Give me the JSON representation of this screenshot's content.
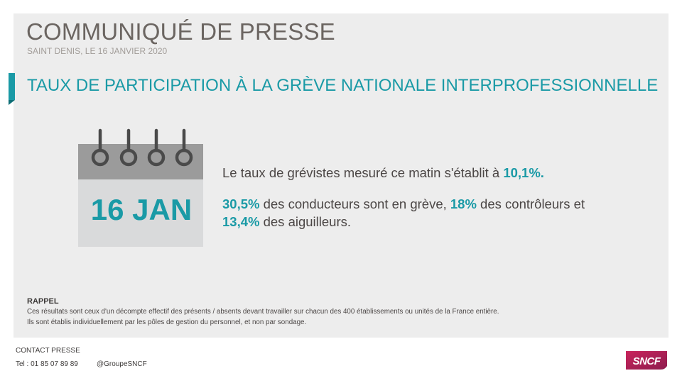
{
  "header": {
    "title": "COMMUNIQUÉ DE PRESSE",
    "dateline": "SAINT DENIS, LE 16 JANVIER 2020",
    "headline": "TAUX DE PARTICIPATION À LA GRÈVE NATIONALE INTERPROFESSIONNELLE"
  },
  "calendar": {
    "date": "16 JAN",
    "icon": "calendar-icon"
  },
  "stats": {
    "line1_prefix": "Le taux de grévistes mesuré ce matin s'établit à ",
    "rate_total": "10,1%.",
    "rate_drivers": "30,5%",
    "line2_mid1": " des conducteurs sont en grève, ",
    "rate_controllers": "18%",
    "line2_mid2": " des contrôleurs et",
    "rate_switchmen": "13,4%",
    "line3_suffix": " des aiguilleurs."
  },
  "rappel": {
    "title": "RAPPEL",
    "line1": "Ces résultats sont ceux d'un décompte effectif des présents / absents devant travailler sur chacun des 400 établissements ou unités de la France entière.",
    "line2": "Ils sont établis individuellement par les pôles de gestion du personnel, et non par sondage."
  },
  "contact": {
    "title": "CONTACT PRESSE",
    "phone": "Tel : 01 85 07 89 89",
    "handle": "@GroupeSNCF"
  },
  "brand": {
    "logo_text": "SNCF",
    "accent": "#1a9aa6",
    "logo_color": "#b11f52"
  }
}
